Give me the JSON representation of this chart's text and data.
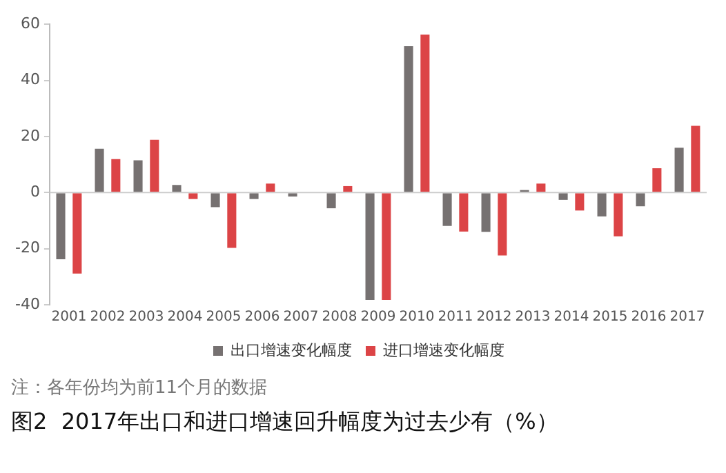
{
  "chart_data": {
    "type": "bar",
    "title": "图2  2017年出口和进口增速回升幅度为过去少有（%）",
    "annotations": [
      "注：各年份均为前11个月的数据"
    ],
    "categories": [
      "2001",
      "2002",
      "2003",
      "2004",
      "2005",
      "2006",
      "2007",
      "2008",
      "2009",
      "2010",
      "2011",
      "2012",
      "2013",
      "2014",
      "2015",
      "2016",
      "2017"
    ],
    "series": [
      {
        "name": "出口增速变化幅度",
        "color": "#767171",
        "values": [
          -23.8,
          15.6,
          11.5,
          2.7,
          -5.2,
          -2.3,
          -1.4,
          -5.6,
          -38.3,
          52.2,
          -11.9,
          -14.0,
          0.9,
          -2.6,
          -8.5,
          -4.9,
          16.0
        ]
      },
      {
        "name": "进口增速变化幅度",
        "color": "#dc4446",
        "values": [
          -28.9,
          11.9,
          18.8,
          -2.3,
          -19.7,
          3.2,
          0,
          2.3,
          -38.3,
          56.3,
          -13.9,
          -22.4,
          3.2,
          -6.4,
          -15.6,
          8.7,
          23.8
        ]
      }
    ],
    "ref_lines": [
      {
        "axis": "y",
        "value": 0,
        "color": "#cccccc"
      }
    ],
    "ylim": [
      -40,
      60
    ],
    "yticks": [
      -40,
      -20,
      0,
      20,
      40,
      60
    ],
    "grid": false,
    "legend": "bottom"
  }
}
